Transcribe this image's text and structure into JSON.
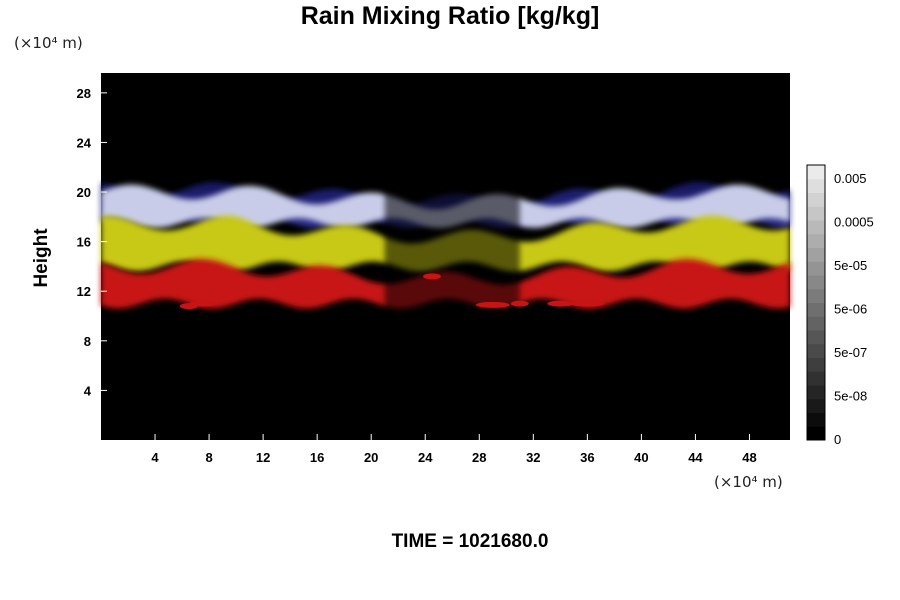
{
  "chart_data": {
    "type": "heatmap",
    "title": "Rain Mixing Ratio [kg/kg]",
    "xlabel": "",
    "ylabel": "Height",
    "x_unit": "(×10⁴ m)",
    "y_unit": "(×10⁴ m)",
    "xlim": [
      0,
      51
    ],
    "ylim": [
      0,
      29.6
    ],
    "xticks": [
      4,
      8,
      12,
      16,
      20,
      24,
      28,
      32,
      36,
      40,
      44,
      48
    ],
    "yticks": [
      4,
      8,
      12,
      16,
      20,
      24,
      28
    ],
    "colorbar": {
      "labels": [
        "0.005",
        "0.0005",
        "5e-05",
        "5e-06",
        "5e-07",
        "5e-08",
        "0"
      ],
      "bands": 20
    },
    "layers": [
      {
        "name": "upper",
        "color": "#c8cce8",
        "bottom": 17.5,
        "top": 20.0
      },
      {
        "name": "middle",
        "color": "#c8c814",
        "bottom": 14.0,
        "top": 17.5
      },
      {
        "name": "lower",
        "color": "#c81414",
        "bottom": 11.0,
        "top": 14.0
      }
    ],
    "footer": "TIME = 1021680.0"
  }
}
